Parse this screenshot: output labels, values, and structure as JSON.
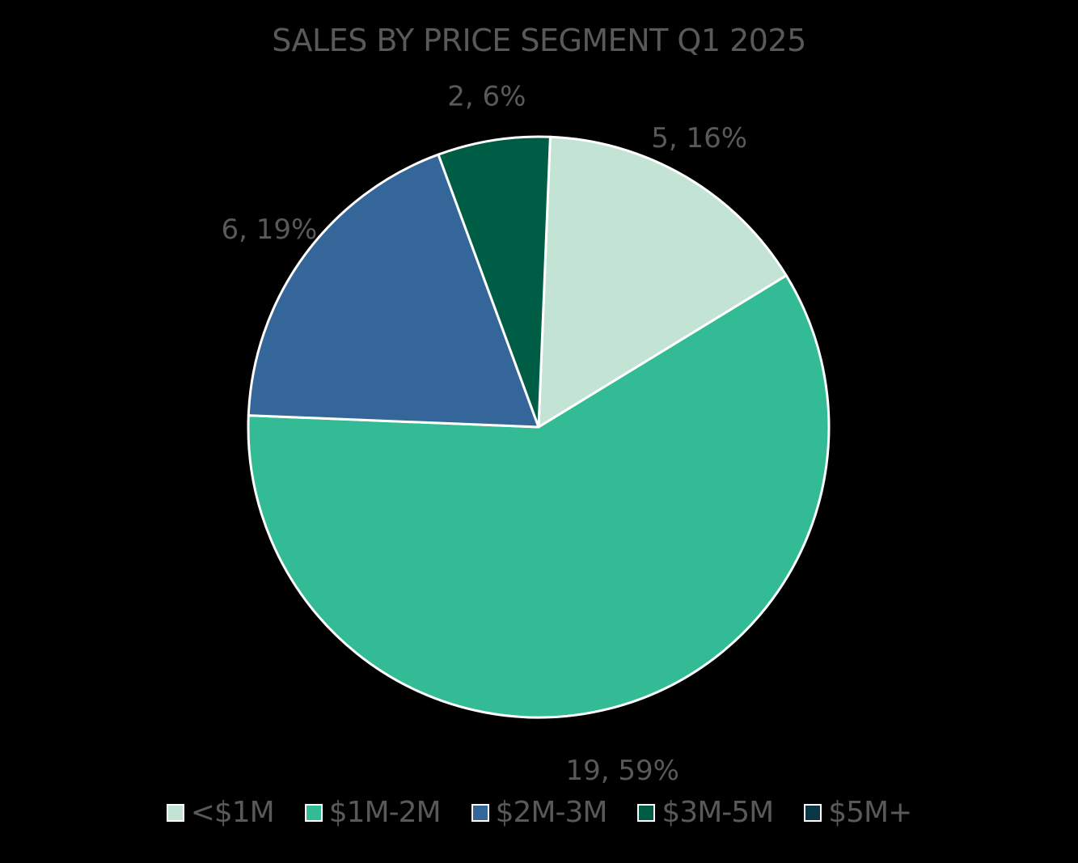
{
  "chart_data": {
    "type": "pie",
    "title": "SALES BY PRICE SEGMENT Q1 2025",
    "slices": [
      {
        "name": "<$1M",
        "value": 5,
        "percent": 16,
        "label": "5, 16%",
        "color": "#c3e3d4"
      },
      {
        "name": "$1M-2M",
        "value": 19,
        "percent": 59,
        "label": "19, 59%",
        "color": "#32bb94"
      },
      {
        "name": "$2M-3M",
        "value": 6,
        "percent": 19,
        "label": "6, 19%",
        "color": "#346699"
      },
      {
        "name": "$3M-5M",
        "value": 2,
        "percent": 6,
        "label": "2, 6%",
        "color": "#005d45"
      },
      {
        "name": "$5M+",
        "value": 0,
        "percent": 0,
        "label": "",
        "color": "#0c3746"
      }
    ],
    "legend": {
      "position": "bottom"
    },
    "slice_border_color": "#ffffff",
    "background_color": "#000000"
  }
}
